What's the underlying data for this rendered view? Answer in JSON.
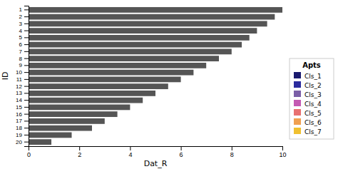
{
  "chart_data": {
    "type": "bar",
    "orientation": "horizontal",
    "categories": [
      "1",
      "2",
      "3",
      "4",
      "5",
      "6",
      "7",
      "8",
      "9",
      "10",
      "11",
      "12",
      "13",
      "14",
      "15",
      "16",
      "17",
      "18",
      "19",
      "20"
    ],
    "values": [
      10.0,
      9.7,
      9.4,
      9.0,
      8.7,
      8.4,
      8.0,
      7.5,
      7.0,
      6.5,
      6.0,
      5.5,
      5.0,
      4.5,
      4.0,
      3.5,
      3.0,
      2.5,
      1.7,
      0.9
    ],
    "color": "#555555",
    "xlabel": "Dat_R",
    "ylabel": "ID",
    "xlim": [
      0,
      10
    ],
    "xticks": [
      0,
      2,
      4,
      6,
      8,
      10
    ],
    "grid": false,
    "legend": "right",
    "legend_title": "Apts",
    "legend_items": [
      {
        "name": "Cls_1",
        "color": "#1a1a6e"
      },
      {
        "name": "Cls_2",
        "color": "#2b2b9e"
      },
      {
        "name": "Cls_3",
        "color": "#7b5ea7"
      },
      {
        "name": "Cls_4",
        "color": "#c45ab3"
      },
      {
        "name": "Cls_5",
        "color": "#e87070"
      },
      {
        "name": "Cls_6",
        "color": "#f0a050"
      },
      {
        "name": "Cls_7",
        "color": "#f0c030"
      }
    ]
  }
}
